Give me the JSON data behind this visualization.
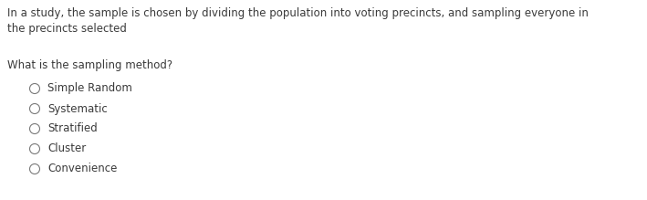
{
  "background_color": "#ffffff",
  "paragraph_text": "In a study, the sample is chosen by dividing the population into voting precincts, and sampling everyone in\nthe precincts selected",
  "question_text": "What is the sampling method?",
  "options": [
    "Simple Random",
    "Systematic",
    "Stratified",
    "Cluster",
    "Convenience"
  ],
  "font_size_para": 8.5,
  "font_size_question": 8.5,
  "font_size_options": 8.5,
  "text_color": "#3a3a3a",
  "circle_edge_color": "#7a7a7a",
  "circle_face_color": "#ffffff",
  "circle_linewidth": 0.8
}
